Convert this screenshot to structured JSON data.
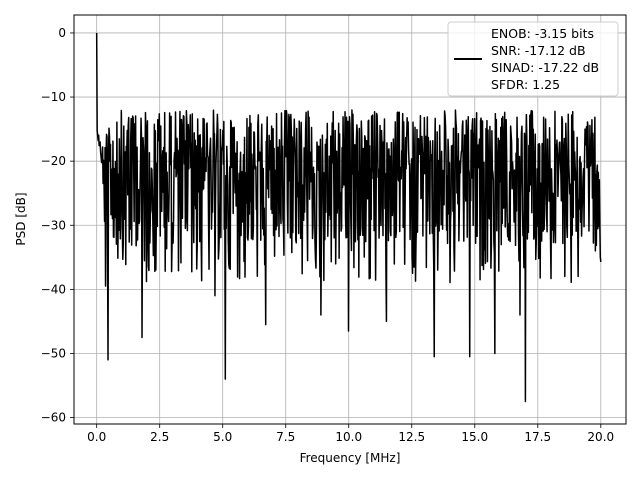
{
  "chart_data": {
    "type": "line",
    "title": "",
    "xlabel": "Frequency [MHz]",
    "ylabel": "PSD [dB]",
    "xlim": [
      -0.9,
      21.0
    ],
    "ylim": [
      -61.0,
      2.8
    ],
    "xticks": [
      0.0,
      2.5,
      5.0,
      7.5,
      10.0,
      12.5,
      15.0,
      17.5,
      20.0
    ],
    "xtick_labels": [
      "0.0",
      "2.5",
      "5.0",
      "7.5",
      "10.0",
      "12.5",
      "15.0",
      "17.5",
      "20.0"
    ],
    "yticks": [
      0,
      -10,
      -20,
      -30,
      -40,
      -50,
      -60
    ],
    "ytick_labels": [
      "0",
      "−10",
      "−20",
      "−30",
      "−40",
      "−50",
      "−60"
    ],
    "grid": true,
    "legend_position": "top-right",
    "legend_lines": [
      "ENOB: -3.15 bits",
      "SNR: -17.12 dB",
      "SINAD: -17.22 dB",
      "SFDR: 1.25"
    ],
    "line_color": "#000000",
    "noise_profile": {
      "x_start": 0.0,
      "x_end": 20.0,
      "num_points": 1024,
      "peak_value": 0.0,
      "mean_level": -21.0,
      "max_noise": -9.5,
      "spikes": [
        {
          "x": 0.45,
          "y": -51.0
        },
        {
          "x": 1.8,
          "y": -47.5
        },
        {
          "x": 5.1,
          "y": -54.0
        },
        {
          "x": 6.7,
          "y": -45.5
        },
        {
          "x": 10.0,
          "y": -46.5
        },
        {
          "x": 11.5,
          "y": -45.0
        },
        {
          "x": 13.4,
          "y": -50.5
        },
        {
          "x": 14.8,
          "y": -50.5
        },
        {
          "x": 15.8,
          "y": -50.0
        },
        {
          "x": 17.0,
          "y": -57.5
        },
        {
          "x": 0.35,
          "y": -39.5
        },
        {
          "x": 4.7,
          "y": -41.0
        },
        {
          "x": 8.9,
          "y": -44.0
        },
        {
          "x": 16.8,
          "y": -44.0
        }
      ]
    }
  }
}
